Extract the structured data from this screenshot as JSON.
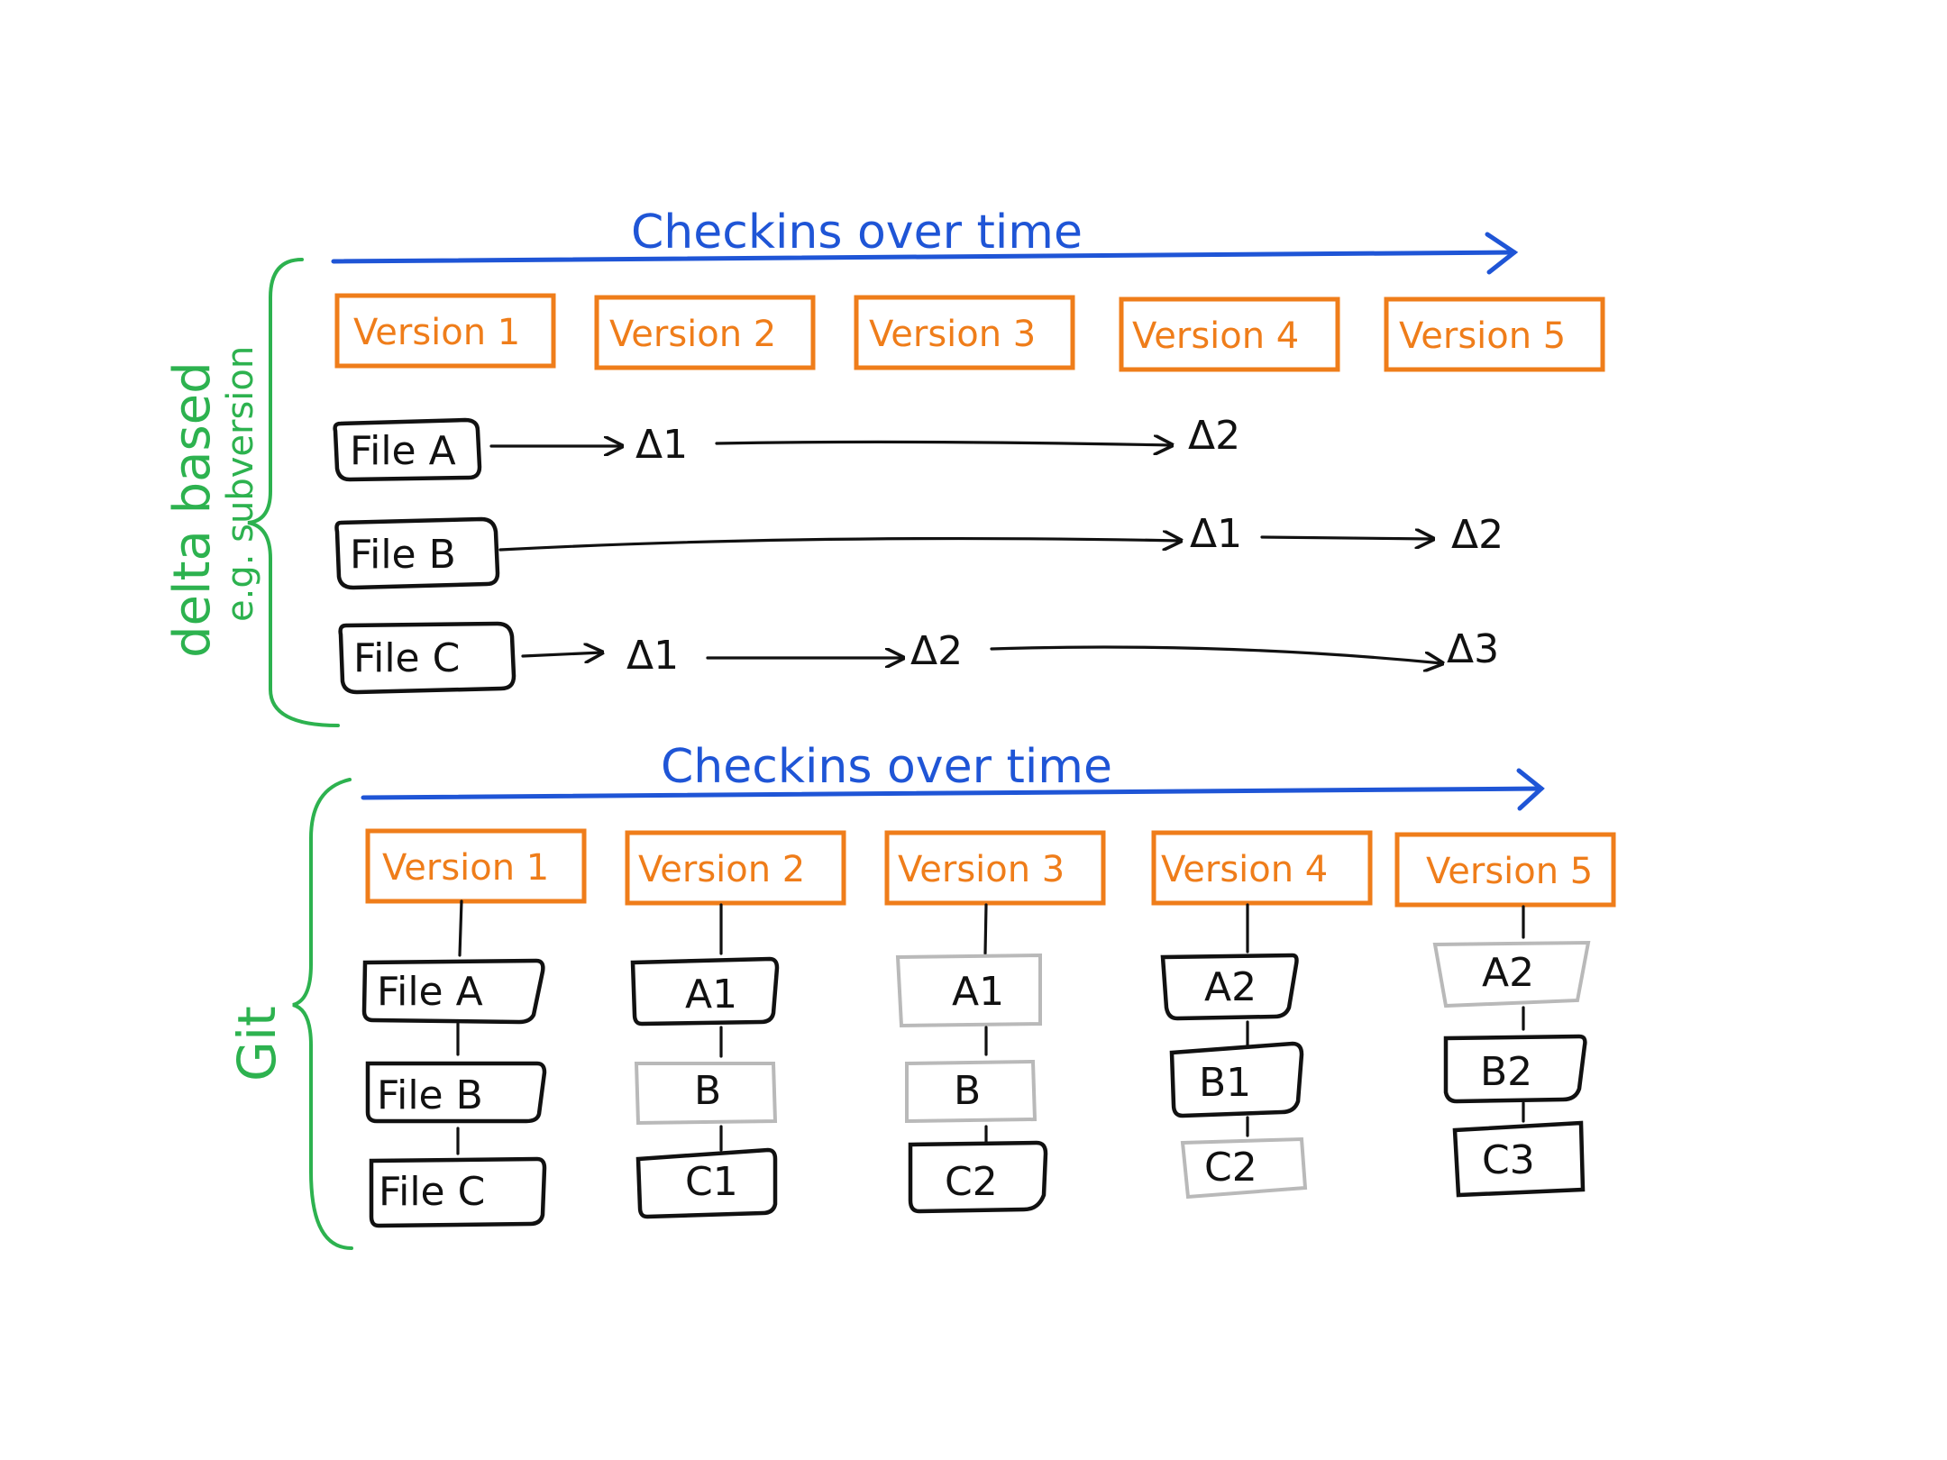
{
  "colors": {
    "timeline": "#1f55d6",
    "version_box": "#ef7d1a",
    "file_box": "#111111",
    "unchanged_box": "#b9b9b9",
    "brace": "#2db24f"
  },
  "delta_section": {
    "label": "delta based",
    "sublabel": "e.g. subversion",
    "timeline_label": "Checkins over time",
    "versions": [
      "Version 1",
      "Version 2",
      "Version 3",
      "Version 4",
      "Version 5"
    ],
    "files": [
      {
        "name": "File A",
        "deltas": [
          "Δ1",
          "Δ2"
        ]
      },
      {
        "name": "File B",
        "deltas": [
          "Δ1",
          "Δ2"
        ]
      },
      {
        "name": "File C",
        "deltas": [
          "Δ1",
          "Δ2",
          "Δ3"
        ]
      }
    ]
  },
  "git_section": {
    "label": "Git",
    "timeline_label": "Checkins over time",
    "versions": [
      "Version 1",
      "Version 2",
      "Version 3",
      "Version 4",
      "Version 5"
    ],
    "snapshots": [
      [
        {
          "text": "File A",
          "changed": true
        },
        {
          "text": "File B",
          "changed": true
        },
        {
          "text": "File C",
          "changed": true
        }
      ],
      [
        {
          "text": "A1",
          "changed": true
        },
        {
          "text": "B",
          "changed": false
        },
        {
          "text": "C1",
          "changed": true
        }
      ],
      [
        {
          "text": "A1",
          "changed": false
        },
        {
          "text": "B",
          "changed": false
        },
        {
          "text": "C2",
          "changed": true
        }
      ],
      [
        {
          "text": "A2",
          "changed": true
        },
        {
          "text": "B1",
          "changed": true
        },
        {
          "text": "C2",
          "changed": false
        }
      ],
      [
        {
          "text": "A2",
          "changed": false
        },
        {
          "text": "B2",
          "changed": true
        },
        {
          "text": "C3",
          "changed": true
        }
      ]
    ]
  }
}
